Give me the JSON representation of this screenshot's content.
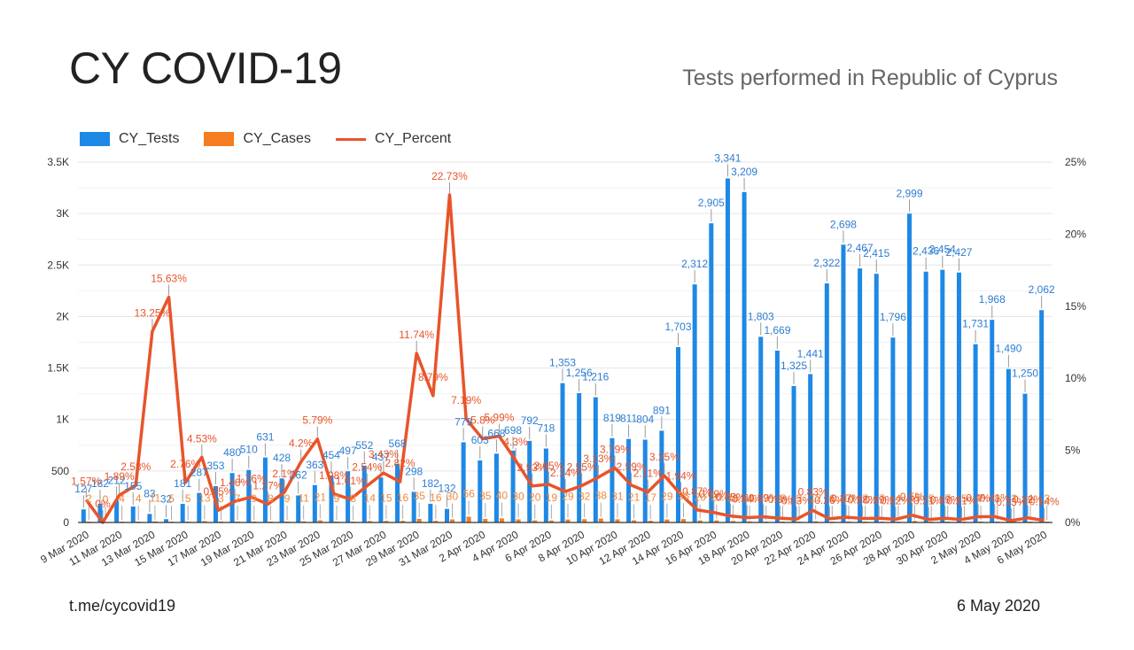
{
  "header": {
    "title": "CY COVID-19",
    "subtitle": "Tests performed in Republic of Cyprus"
  },
  "footer": {
    "source": "t.me/cycovid19",
    "date": "6 May 2020"
  },
  "colors": {
    "tests": "#1e88e5",
    "cases": "#f57c1f",
    "percent": "#e8542a"
  },
  "chart_data": {
    "type": "bar",
    "title": "Tests performed in Republic of Cyprus",
    "xlabel": "",
    "ylabel_left": "",
    "ylabel_right": "",
    "legend_position": "top-left",
    "grid": true,
    "ylim_left": [
      0,
      3500
    ],
    "ylim_right": [
      0,
      25
    ],
    "left_ticks": [
      "0",
      "500",
      "1K",
      "1.5K",
      "2K",
      "2.5K",
      "3K",
      "3.5K"
    ],
    "right_ticks": [
      "0%",
      "5%",
      "10%",
      "15%",
      "20%",
      "25%"
    ],
    "x_tick_labels": [
      "9 Mar 2020",
      "11 Mar 2020",
      "13 Mar 2020",
      "15 Mar 2020",
      "17 Mar 2020",
      "19 Mar 2020",
      "21 Mar 2020",
      "23 Mar 2020",
      "25 Mar 2020",
      "27 Mar 2020",
      "29 Mar 2020",
      "31 Mar 2020",
      "2 Apr 2020",
      "4 Apr 2020",
      "6 Apr 2020",
      "8 Apr 2020",
      "10 Apr 2020",
      "12 Apr 2020",
      "14 Apr 2020",
      "16 Apr 2020",
      "18 Apr 2020",
      "20 Apr 2020",
      "22 Apr 2020",
      "24 Apr 2020",
      "26 Apr 2020",
      "28 Apr 2020",
      "30 Apr 2020",
      "2 May 2020",
      "4 May 2020",
      "6 May 2020"
    ],
    "categories": [
      "9 Mar",
      "10 Mar",
      "11 Mar",
      "12 Mar",
      "13 Mar",
      "14 Mar",
      "15 Mar",
      "16 Mar",
      "17 Mar",
      "18 Mar",
      "19 Mar",
      "20 Mar",
      "21 Mar",
      "22 Mar",
      "23 Mar",
      "24 Mar",
      "25 Mar",
      "26 Mar",
      "27 Mar",
      "28 Mar",
      "29 Mar",
      "30 Mar",
      "31 Mar",
      "1 Apr",
      "2 Apr",
      "3 Apr",
      "4 Apr",
      "5 Apr",
      "6 Apr",
      "7 Apr",
      "8 Apr",
      "9 Apr",
      "10 Apr",
      "11 Apr",
      "12 Apr",
      "13 Apr",
      "14 Apr",
      "15 Apr",
      "16 Apr",
      "17 Apr",
      "18 Apr",
      "19 Apr",
      "20 Apr",
      "21 Apr",
      "22 Apr",
      "23 Apr",
      "24 Apr",
      "25 Apr",
      "26 Apr",
      "27 Apr",
      "28 Apr",
      "29 Apr",
      "30 Apr",
      "1 May",
      "2 May",
      "3 May",
      "4 May",
      "5 May",
      "6 May"
    ],
    "series": [
      {
        "name": "CY_Tests",
        "type": "bar",
        "axis": "left",
        "values": [
          127,
          182,
          212,
          155,
          83,
          32,
          181,
          287,
          353,
          480,
          510,
          631,
          428,
          262,
          363,
          454,
          497,
          552,
          437,
          568,
          298,
          182,
          132,
          779,
          603,
          668,
          698,
          792,
          718,
          1353,
          1256,
          1216,
          819,
          811,
          804,
          891,
          1703,
          2312,
          2905,
          3341,
          3209,
          1803,
          1669,
          1325,
          1441,
          2322,
          2698,
          2467,
          2415,
          1796,
          2999,
          2436,
          2454,
          2427,
          1731,
          1968,
          1490,
          1250,
          2062
        ]
      },
      {
        "name": "CY_Cases",
        "type": "bar",
        "axis": "left",
        "values": [
          2,
          0,
          4,
          4,
          11,
          5,
          5,
          13,
          3,
          7,
          9,
          8,
          9,
          11,
          21,
          9,
          8,
          14,
          15,
          16,
          35,
          16,
          30,
          56,
          35,
          40,
          30,
          20,
          19,
          29,
          32,
          38,
          31,
          21,
          17,
          29,
          33,
          20,
          20,
          15,
          11,
          7,
          5,
          3,
          12,
          6,
          10,
          7,
          7,
          4,
          15,
          5,
          7,
          5,
          7,
          8,
          2,
          4,
          3
        ]
      },
      {
        "name": "CY_Percent",
        "type": "line",
        "axis": "right",
        "values": [
          1.57,
          0,
          1.89,
          2.58,
          13.25,
          15.63,
          2.76,
          4.53,
          0.85,
          1.46,
          1.76,
          1.27,
          2.1,
          4.2,
          5.79,
          1.98,
          1.61,
          2.54,
          3.43,
          2.82,
          11.74,
          8.79,
          22.73,
          7.19,
          5.8,
          5.99,
          4.3,
          2.53,
          2.65,
          2.14,
          2.55,
          3.13,
          3.79,
          2.59,
          2.11,
          3.25,
          1.94,
          0.87,
          0.69,
          0.45,
          0.34,
          0.39,
          0.3,
          0.23,
          0.83,
          0.26,
          0.37,
          0.28,
          0.29,
          0.22,
          0.5,
          0.21,
          0.29,
          0.21,
          0.4,
          0.41,
          0.13,
          0.32,
          0.14
        ]
      }
    ]
  }
}
